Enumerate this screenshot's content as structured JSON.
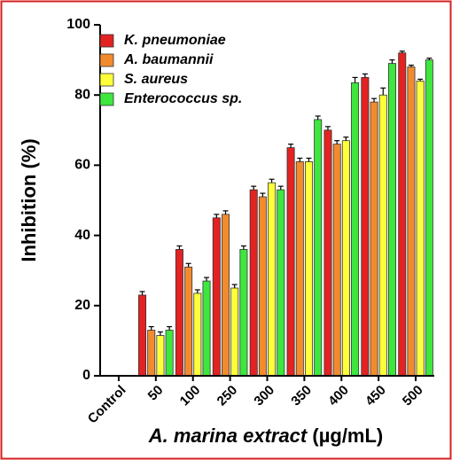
{
  "chart_data": {
    "type": "bar",
    "ylabel": "Inhibition (%)",
    "xlabel": "A. marina extract",
    "xlabel_unit": "(µg/mL)",
    "categories": [
      "Control",
      "50",
      "100",
      "250",
      "300",
      "350",
      "400",
      "450",
      "500"
    ],
    "series": [
      {
        "name": "K. pneumoniae",
        "color": "#e32222",
        "values": [
          0,
          23,
          36,
          45,
          53,
          65,
          70,
          85,
          92
        ],
        "errors": [
          0,
          1,
          1,
          1,
          1,
          1,
          1,
          1,
          0.5
        ]
      },
      {
        "name": "A. baumannii",
        "color": "#f28b2e",
        "values": [
          0,
          13,
          31,
          46,
          51,
          61,
          66,
          78,
          88
        ],
        "errors": [
          0,
          1,
          1,
          1,
          1,
          1,
          1,
          1,
          0.5
        ]
      },
      {
        "name": "S. aureus",
        "color": "#ffff3a",
        "values": [
          0,
          11.5,
          23.5,
          25,
          55,
          61,
          67,
          80,
          84
        ],
        "errors": [
          0,
          1,
          1,
          1,
          1,
          1,
          1,
          2,
          0.5
        ]
      },
      {
        "name": "Enterococcus sp.",
        "color": "#3ee63e",
        "values": [
          0,
          13,
          27,
          36,
          53,
          73,
          83.5,
          89,
          90
        ],
        "errors": [
          0,
          1,
          1,
          1,
          1,
          1,
          1.5,
          1,
          0.5
        ]
      }
    ],
    "ylim": [
      0,
      100
    ],
    "yticks": [
      0,
      20,
      40,
      60,
      80,
      100
    ],
    "legend": "upper-left"
  }
}
